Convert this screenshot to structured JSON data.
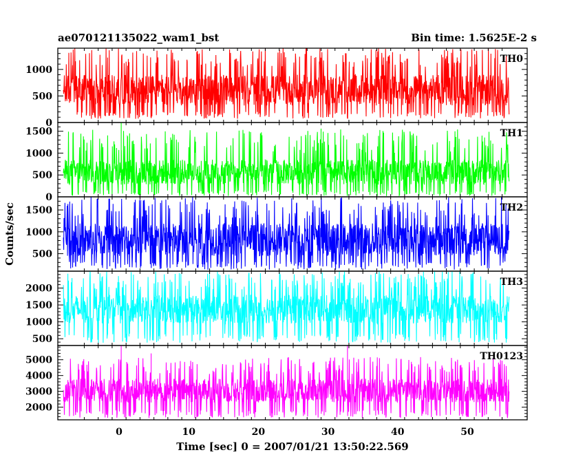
{
  "chart_data": {
    "type": "line",
    "title_left": "ae070121135022_wam1_bst",
    "title_right": "Bin time: 1.5625E-2 s",
    "xlabel": "Time [sec] 0 = 2007/01/21 13:50:22.569",
    "ylabel": "Counts/sec",
    "xlim": [
      -8.8,
      58.6
    ],
    "xticks": [
      0,
      10,
      20,
      30,
      40,
      50
    ],
    "x_data_range": [
      -8.0,
      56.0
    ],
    "grid": false,
    "panels": [
      {
        "name": "TH0",
        "color": "#ff0000",
        "ylim": [
          0,
          1400
        ],
        "yticks": [
          0,
          500,
          1000
        ],
        "base_range": [
          320,
          900
        ],
        "spike_range": [
          1050,
          1400
        ],
        "dip_range": [
          70,
          200
        ]
      },
      {
        "name": "TH1",
        "color": "#00ff00",
        "ylim": [
          0,
          1700
        ],
        "yticks": [
          0,
          500,
          1000,
          1500
        ],
        "base_range": [
          280,
          850
        ],
        "spike_range": [
          1000,
          1550
        ],
        "dip_range": [
          20,
          150
        ],
        "outliers": [
          {
            "x": 0.3,
            "y": 1700
          },
          {
            "x": 29.0,
            "y": 1560
          }
        ]
      },
      {
        "name": "TH2",
        "color": "#0000ff",
        "ylim": [
          100,
          1800
        ],
        "yticks": [
          500,
          1000,
          1500
        ],
        "base_range": [
          450,
          1200
        ],
        "spike_range": [
          1300,
          1800
        ],
        "dip_range": [
          130,
          320
        ]
      },
      {
        "name": "TH3",
        "color": "#00ffff",
        "ylim": [
          300,
          2500
        ],
        "yticks": [
          500,
          1000,
          1500,
          2000
        ],
        "base_range": [
          950,
          1800
        ],
        "spike_range": [
          1950,
          2500
        ],
        "dip_range": [
          380,
          650
        ]
      },
      {
        "name": "TH0123",
        "color": "#ff00ff",
        "ylim": [
          1200,
          5900
        ],
        "yticks": [
          2000,
          3000,
          4000,
          5000
        ],
        "base_range": [
          2300,
          3800
        ],
        "spike_range": [
          4100,
          5200
        ],
        "dip_range": [
          1300,
          1800
        ],
        "outliers": [
          {
            "x": 0.3,
            "y": 5900
          },
          {
            "x": 32.8,
            "y": 5900
          },
          {
            "x": 4.6,
            "y": 5400
          }
        ]
      }
    ]
  }
}
